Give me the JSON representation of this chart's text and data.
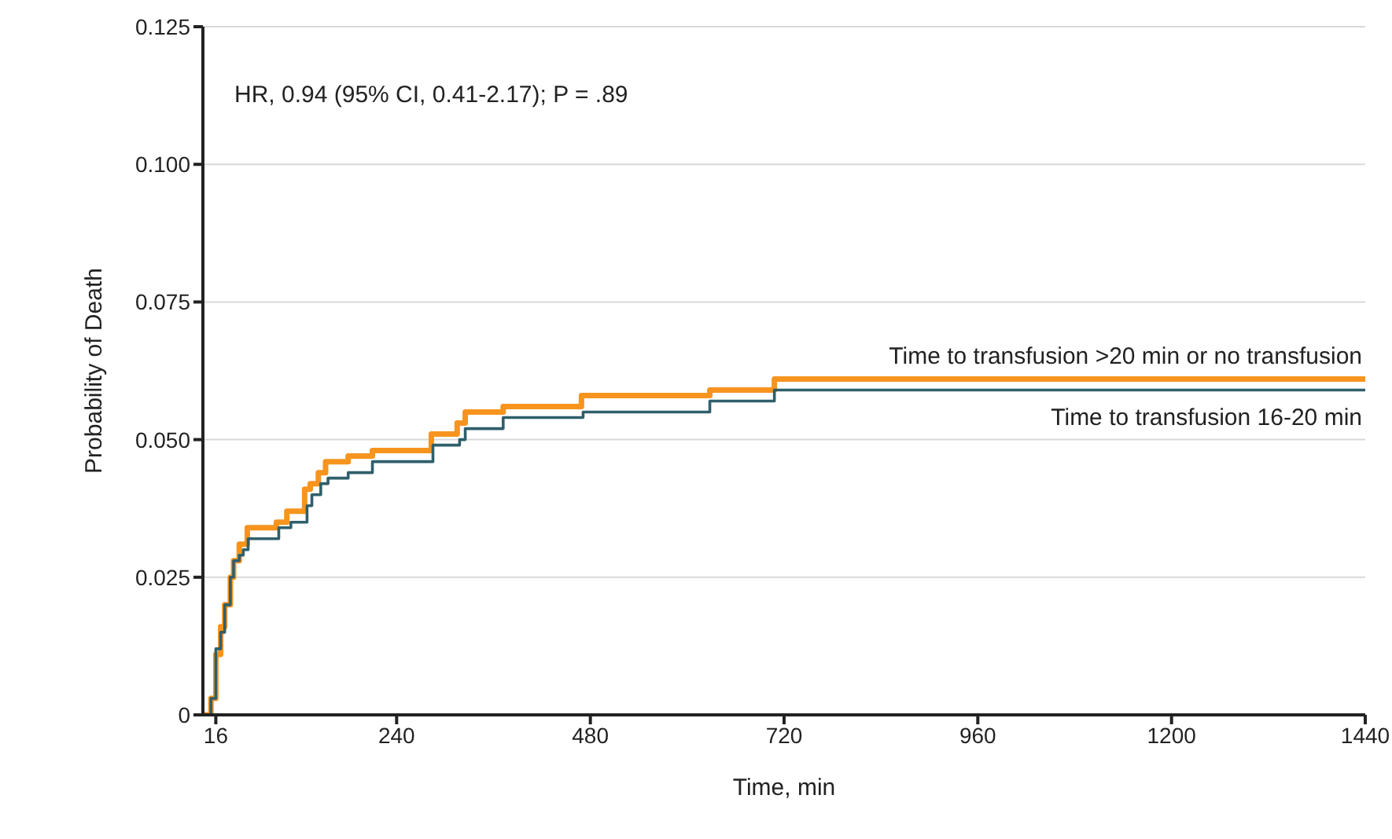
{
  "chart_data": {
    "type": "step",
    "ylabel": "Probability of Death",
    "xlabel": "Time, min",
    "annotations": [
      "HR, 0.94 (95% CI, 0.41-2.17); P = .89"
    ],
    "xlim": [
      0,
      1440
    ],
    "xticks": [
      16,
      240,
      480,
      720,
      960,
      1200,
      1440
    ],
    "ylim": [
      0,
      0.125
    ],
    "yticks": [
      {
        "value": 0,
        "label": "0"
      },
      0.025,
      {
        "value": 0.05,
        "label": "0.050"
      },
      0.075,
      {
        "value": 0.1,
        "label": "0.100"
      },
      0.125
    ],
    "grid": "y",
    "legend": false,
    "marker": "none",
    "line_style": "solid",
    "series": [
      {
        "name": "Time to transfusion >20 min or no transfusion",
        "color": "#f7941d",
        "x": [
          0,
          10,
          16,
          22,
          27,
          34,
          38,
          45,
          55,
          91,
          104,
          126,
          133,
          143,
          152,
          180,
          210,
          283,
          315,
          325,
          372,
          469,
          628,
          708,
          1440
        ],
        "values": [
          0,
          0.003,
          0.011,
          0.016,
          0.02,
          0.025,
          0.028,
          0.031,
          0.034,
          0.035,
          0.037,
          0.041,
          0.042,
          0.044,
          0.046,
          0.047,
          0.048,
          0.051,
          0.053,
          0.055,
          0.056,
          0.058,
          0.059,
          0.061,
          0.061
        ]
      },
      {
        "name": "Time to transfusion 16-20 min",
        "color": "#2f5f6b",
        "x": [
          0,
          10,
          16,
          22,
          27,
          34,
          38,
          45,
          50,
          56,
          94,
          109,
          129,
          135,
          146,
          155,
          180,
          210,
          285,
          318,
          325,
          372,
          471,
          628,
          708,
          1440
        ],
        "values": [
          0,
          0.003,
          0.012,
          0.015,
          0.02,
          0.025,
          0.028,
          0.029,
          0.03,
          0.032,
          0.034,
          0.035,
          0.038,
          0.04,
          0.042,
          0.043,
          0.044,
          0.046,
          0.049,
          0.05,
          0.052,
          0.054,
          0.055,
          0.057,
          0.059,
          0.059
        ]
      }
    ]
  }
}
